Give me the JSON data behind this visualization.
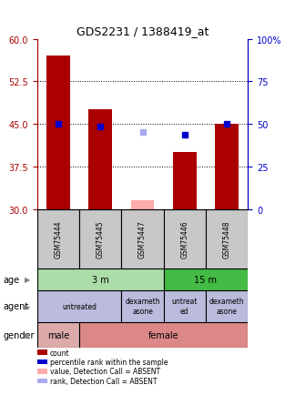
{
  "title": "GDS2231 / 1388419_at",
  "samples": [
    "GSM75444",
    "GSM75445",
    "GSM75447",
    "GSM75446",
    "GSM75448"
  ],
  "bar_bottom": 30,
  "ylim": [
    30,
    60
  ],
  "ylim_right": [
    0,
    100
  ],
  "yticks_left": [
    30,
    37.5,
    45,
    52.5,
    60
  ],
  "yticks_right": [
    0,
    25,
    50,
    75,
    100
  ],
  "count_values": [
    57,
    47.5,
    null,
    40,
    45
  ],
  "count_color": "#aa0000",
  "absent_count_values": [
    null,
    null,
    31.5,
    null,
    null
  ],
  "absent_count_color": "#ffaaaa",
  "percentile_values": [
    45,
    44.5,
    null,
    43,
    45
  ],
  "percentile_color": "#0000cc",
  "absent_percentile_values": [
    null,
    null,
    43.5,
    null,
    null
  ],
  "absent_percentile_color": "#aaaaee",
  "age_boundaries": [
    [
      0,
      3,
      "3 m",
      "#aaddaa"
    ],
    [
      3,
      5,
      "15 m",
      "#44bb44"
    ]
  ],
  "agent_boundaries": [
    [
      0,
      2,
      "untreated",
      "#bbbbdd"
    ],
    [
      2,
      3,
      "dexameth\nasone",
      "#bbbbdd"
    ],
    [
      3,
      4,
      "untreat\ned",
      "#bbbbdd"
    ],
    [
      4,
      5,
      "dexameth\nasone",
      "#bbbbdd"
    ]
  ],
  "gender_boundaries": [
    [
      0,
      1,
      "male",
      "#ddaaaa"
    ],
    [
      1,
      5,
      "female",
      "#dd8888"
    ]
  ],
  "legend_items": [
    {
      "color": "#aa0000",
      "label": "count"
    },
    {
      "color": "#0000cc",
      "label": "percentile rank within the sample"
    },
    {
      "color": "#ffaaaa",
      "label": "value, Detection Call = ABSENT"
    },
    {
      "color": "#aaaaee",
      "label": "rank, Detection Call = ABSENT"
    }
  ],
  "row_labels": [
    "age",
    "agent",
    "gender"
  ],
  "sample_box_color": "#c8c8c8",
  "bar_width": 0.55
}
